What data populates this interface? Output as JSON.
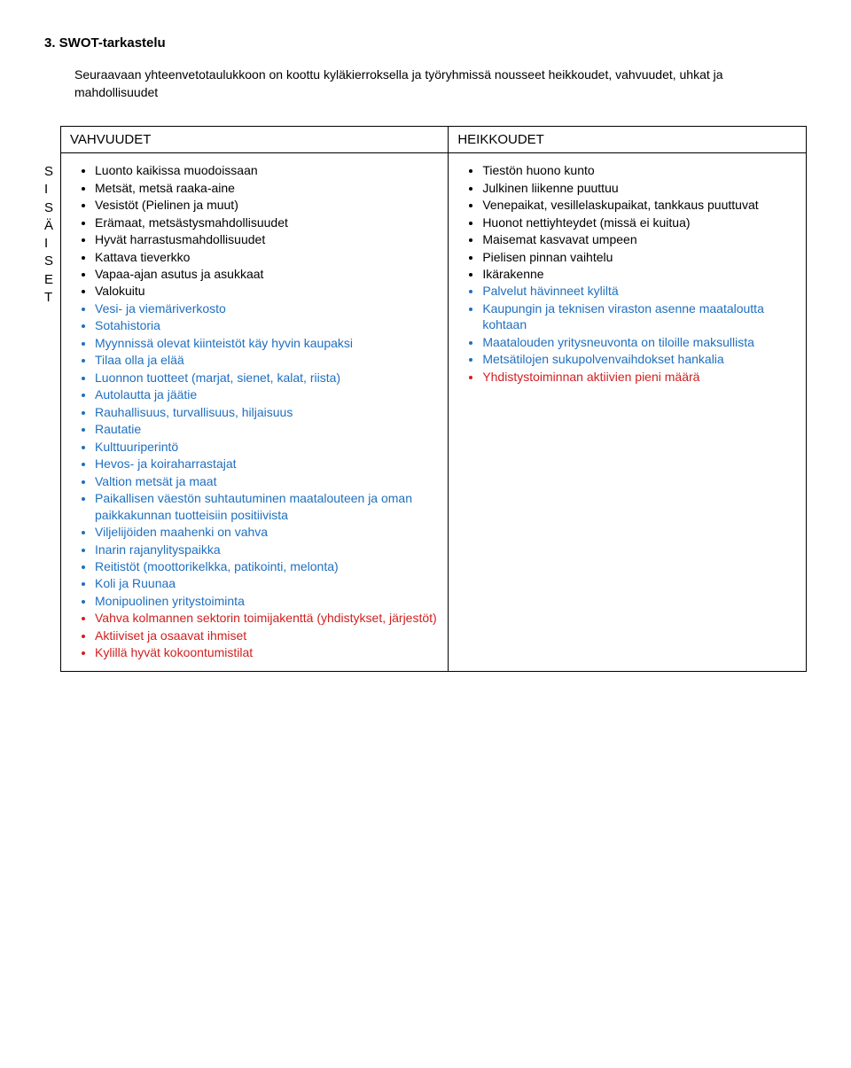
{
  "title": "3. SWOT-tarkastelu",
  "intro": "Seuraavaan yhteenvetotaulukkoon on koottu kyläkierroksella ja työryhmissä nousseet heikkoudet, vahvuudet, uhkat ja mahdollisuudet",
  "sideLetters": [
    "S",
    "I",
    "S",
    "Ä",
    "I",
    "S",
    "E",
    "T"
  ],
  "headers": {
    "left": "VAHVUUDET",
    "right": "HEIKKOUDET"
  },
  "colors": {
    "std": "#000000",
    "blue": "#1f6fbf",
    "red": "#d11f1f",
    "bg": "#ffffff"
  },
  "vahvuudet": [
    {
      "text": "Luonto kaikissa muodoissaan",
      "color": "std"
    },
    {
      "text": "Metsät, metsä raaka-aine",
      "color": "std"
    },
    {
      "text": "Vesistöt (Pielinen ja muut)",
      "color": "std"
    },
    {
      "text": "Erämaat, metsästysmahdollisuudet",
      "color": "std"
    },
    {
      "text": "Hyvät harrastusmahdollisuudet",
      "color": "std"
    },
    {
      "text": "Kattava tieverkko",
      "color": "std"
    },
    {
      "text": "Vapaa-ajan asutus ja asukkaat",
      "color": "std"
    },
    {
      "text": "Valokuitu",
      "color": "std"
    },
    {
      "text": "Vesi- ja viemäriverkosto",
      "color": "blue"
    },
    {
      "text": "Sotahistoria",
      "color": "blue"
    },
    {
      "text": "Myynnissä olevat kiinteistöt käy hyvin kaupaksi",
      "color": "blue"
    },
    {
      "text": "Tilaa olla ja elää",
      "color": "blue"
    },
    {
      "text": "Luonnon tuotteet (marjat, sienet, kalat, riista)",
      "color": "blue"
    },
    {
      "text": "Autolautta ja jäätie",
      "color": "blue"
    },
    {
      "text": "Rauhallisuus, turvallisuus, hiljaisuus",
      "color": "blue"
    },
    {
      "text": "Rautatie",
      "color": "blue"
    },
    {
      "text": "Kulttuuriperintö",
      "color": "blue"
    },
    {
      "text": "Hevos- ja koiraharrastajat",
      "color": "blue"
    },
    {
      "text": "Valtion metsät ja maat",
      "color": "blue"
    },
    {
      "text": "Paikallisen väestön suhtautuminen maatalouteen ja oman paikkakunnan tuotteisiin positiivista",
      "color": "blue"
    },
    {
      "text": "Viljelijöiden maahenki on vahva",
      "color": "blue"
    },
    {
      "text": "Inarin rajanylityspaikka",
      "color": "blue"
    },
    {
      "text": "Reitistöt (moottorikelkka, patikointi, melonta)",
      "color": "blue"
    },
    {
      "text": "Koli ja Ruunaa",
      "color": "blue"
    },
    {
      "text": "Monipuolinen yritystoiminta",
      "color": "blue"
    },
    {
      "text": "Vahva kolmannen sektorin toimijakenttä (yhdistykset, järjestöt)",
      "color": "red"
    },
    {
      "text": "Aktiiviset ja osaavat ihmiset",
      "color": "red"
    },
    {
      "text": "Kylillä hyvät kokoontumistilat",
      "color": "red"
    }
  ],
  "heikkoudet": [
    {
      "text": "Tiestön huono kunto",
      "color": "std"
    },
    {
      "text": "Julkinen liikenne puuttuu",
      "color": "std"
    },
    {
      "text": "Venepaikat, vesillelaskupaikat, tankkaus puuttuvat",
      "color": "std"
    },
    {
      "text": "Huonot nettiyhteydet (missä ei kuitua)",
      "color": "std"
    },
    {
      "text": "Maisemat kasvavat umpeen",
      "color": "std"
    },
    {
      "text": "Pielisen pinnan vaihtelu",
      "color": "std"
    },
    {
      "text": "Ikärakenne",
      "color": "std"
    },
    {
      "text": "Palvelut hävinneet kyliltä",
      "color": "blue"
    },
    {
      "text": "Kaupungin ja teknisen viraston asenne maataloutta kohtaan",
      "color": "blue"
    },
    {
      "text": "Maatalouden yritysneuvonta on tiloille maksullista",
      "color": "blue"
    },
    {
      "text": "Metsätilojen sukupolvenvaihdokset hankalia",
      "color": "blue"
    },
    {
      "text": "Yhdistystoiminnan aktiivien pieni määrä",
      "color": "red"
    }
  ]
}
